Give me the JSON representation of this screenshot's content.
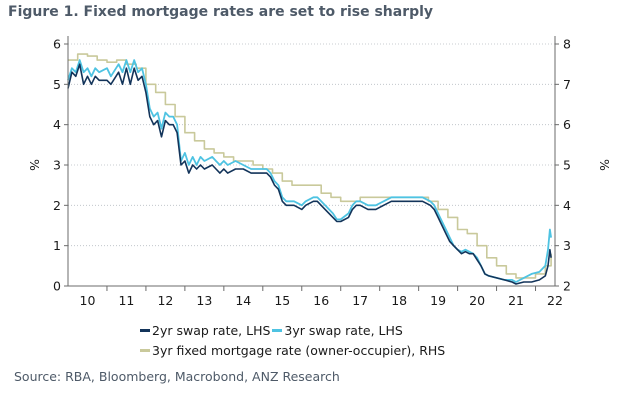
{
  "title": "Figure 1.  Fixed mortgage rates are set to rise sharply",
  "source": "Source: RBA, Bloomberg, Macrobond, ANZ Research",
  "colors": {
    "swap2": "#13345a",
    "swap3": "#4ec3e2",
    "mortgage": "#c9c99b",
    "text": "#4e5a68"
  },
  "legend": {
    "swap2": "2yr swap rate, LHS",
    "swap3": "3yr swap rate, LHS",
    "mortgage": "3yr fixed mortgage rate (owner-occupier), RHS"
  },
  "chart_data": {
    "type": "line",
    "ylabel_left": "%",
    "ylabel_right": "%",
    "x_ticks": [
      "10",
      "11",
      "12",
      "13",
      "14",
      "15",
      "16",
      "17",
      "18",
      "19",
      "20",
      "21",
      "22"
    ],
    "x_range": [
      2009.5,
      2022.0
    ],
    "ylim_left": [
      0,
      6
    ],
    "ylim_right": [
      2,
      8
    ],
    "y_ticks_left": [
      0,
      1,
      2,
      3,
      4,
      5,
      6
    ],
    "y_ticks_right": [
      2,
      3,
      4,
      5,
      6,
      7,
      8
    ],
    "series": [
      {
        "name": "2yr swap rate, LHS",
        "axis": "left",
        "points": [
          [
            2009.5,
            4.9
          ],
          [
            2009.6,
            5.3
          ],
          [
            2009.7,
            5.2
          ],
          [
            2009.8,
            5.5
          ],
          [
            2009.9,
            5.0
          ],
          [
            2010.0,
            5.2
          ],
          [
            2010.1,
            5.0
          ],
          [
            2010.2,
            5.2
          ],
          [
            2010.3,
            5.1
          ],
          [
            2010.5,
            5.1
          ],
          [
            2010.6,
            5.0
          ],
          [
            2010.8,
            5.3
          ],
          [
            2010.9,
            5.0
          ],
          [
            2011.0,
            5.4
          ],
          [
            2011.1,
            5.0
          ],
          [
            2011.2,
            5.4
          ],
          [
            2011.3,
            5.1
          ],
          [
            2011.4,
            5.2
          ],
          [
            2011.5,
            4.8
          ],
          [
            2011.6,
            4.2
          ],
          [
            2011.7,
            4.0
          ],
          [
            2011.8,
            4.1
          ],
          [
            2011.9,
            3.7
          ],
          [
            2012.0,
            4.1
          ],
          [
            2012.1,
            4.0
          ],
          [
            2012.2,
            4.0
          ],
          [
            2012.3,
            3.8
          ],
          [
            2012.4,
            3.0
          ],
          [
            2012.5,
            3.1
          ],
          [
            2012.6,
            2.8
          ],
          [
            2012.7,
            3.0
          ],
          [
            2012.8,
            2.9
          ],
          [
            2012.9,
            3.0
          ],
          [
            2013.0,
            2.9
          ],
          [
            2013.2,
            3.0
          ],
          [
            2013.3,
            2.9
          ],
          [
            2013.4,
            2.8
          ],
          [
            2013.5,
            2.9
          ],
          [
            2013.6,
            2.8
          ],
          [
            2013.8,
            2.9
          ],
          [
            2014.0,
            2.9
          ],
          [
            2014.2,
            2.8
          ],
          [
            2014.4,
            2.8
          ],
          [
            2014.6,
            2.8
          ],
          [
            2014.7,
            2.7
          ],
          [
            2014.8,
            2.5
          ],
          [
            2014.9,
            2.4
          ],
          [
            2015.0,
            2.1
          ],
          [
            2015.1,
            2.0
          ],
          [
            2015.3,
            2.0
          ],
          [
            2015.5,
            1.9
          ],
          [
            2015.6,
            2.0
          ],
          [
            2015.8,
            2.1
          ],
          [
            2015.9,
            2.1
          ],
          [
            2016.1,
            1.9
          ],
          [
            2016.3,
            1.7
          ],
          [
            2016.4,
            1.6
          ],
          [
            2016.5,
            1.6
          ],
          [
            2016.7,
            1.7
          ],
          [
            2016.8,
            1.9
          ],
          [
            2016.9,
            2.0
          ],
          [
            2017.0,
            2.0
          ],
          [
            2017.2,
            1.9
          ],
          [
            2017.4,
            1.9
          ],
          [
            2017.6,
            2.0
          ],
          [
            2017.8,
            2.1
          ],
          [
            2018.0,
            2.1
          ],
          [
            2018.2,
            2.1
          ],
          [
            2018.4,
            2.1
          ],
          [
            2018.6,
            2.1
          ],
          [
            2018.8,
            2.0
          ],
          [
            2018.9,
            1.9
          ],
          [
            2019.0,
            1.7
          ],
          [
            2019.1,
            1.5
          ],
          [
            2019.2,
            1.3
          ],
          [
            2019.3,
            1.1
          ],
          [
            2019.4,
            1.0
          ],
          [
            2019.5,
            0.9
          ],
          [
            2019.6,
            0.8
          ],
          [
            2019.7,
            0.85
          ],
          [
            2019.8,
            0.8
          ],
          [
            2019.9,
            0.8
          ],
          [
            2020.0,
            0.65
          ],
          [
            2020.1,
            0.5
          ],
          [
            2020.2,
            0.3
          ],
          [
            2020.3,
            0.25
          ],
          [
            2020.5,
            0.2
          ],
          [
            2020.7,
            0.15
          ],
          [
            2020.9,
            0.1
          ],
          [
            2021.0,
            0.05
          ],
          [
            2021.2,
            0.1
          ],
          [
            2021.4,
            0.1
          ],
          [
            2021.6,
            0.15
          ],
          [
            2021.75,
            0.25
          ],
          [
            2021.82,
            0.5
          ],
          [
            2021.87,
            0.9
          ],
          [
            2021.9,
            0.7
          ]
        ]
      },
      {
        "name": "3yr swap rate, LHS",
        "axis": "left",
        "points": [
          [
            2009.5,
            5.1
          ],
          [
            2009.6,
            5.4
          ],
          [
            2009.7,
            5.3
          ],
          [
            2009.8,
            5.6
          ],
          [
            2009.9,
            5.3
          ],
          [
            2010.0,
            5.4
          ],
          [
            2010.1,
            5.2
          ],
          [
            2010.2,
            5.4
          ],
          [
            2010.3,
            5.3
          ],
          [
            2010.5,
            5.4
          ],
          [
            2010.6,
            5.2
          ],
          [
            2010.8,
            5.5
          ],
          [
            2010.9,
            5.3
          ],
          [
            2011.0,
            5.6
          ],
          [
            2011.1,
            5.3
          ],
          [
            2011.2,
            5.6
          ],
          [
            2011.3,
            5.3
          ],
          [
            2011.4,
            5.4
          ],
          [
            2011.5,
            5.0
          ],
          [
            2011.6,
            4.4
          ],
          [
            2011.7,
            4.2
          ],
          [
            2011.8,
            4.3
          ],
          [
            2011.9,
            3.9
          ],
          [
            2012.0,
            4.3
          ],
          [
            2012.1,
            4.2
          ],
          [
            2012.2,
            4.2
          ],
          [
            2012.3,
            4.0
          ],
          [
            2012.4,
            3.1
          ],
          [
            2012.5,
            3.3
          ],
          [
            2012.6,
            3.0
          ],
          [
            2012.7,
            3.2
          ],
          [
            2012.8,
            3.0
          ],
          [
            2012.9,
            3.2
          ],
          [
            2013.0,
            3.1
          ],
          [
            2013.2,
            3.2
          ],
          [
            2013.3,
            3.1
          ],
          [
            2013.4,
            3.0
          ],
          [
            2013.5,
            3.1
          ],
          [
            2013.6,
            3.0
          ],
          [
            2013.8,
            3.1
          ],
          [
            2014.0,
            3.0
          ],
          [
            2014.2,
            2.9
          ],
          [
            2014.4,
            2.9
          ],
          [
            2014.6,
            2.9
          ],
          [
            2014.7,
            2.8
          ],
          [
            2014.8,
            2.6
          ],
          [
            2014.9,
            2.5
          ],
          [
            2015.0,
            2.2
          ],
          [
            2015.1,
            2.1
          ],
          [
            2015.3,
            2.1
          ],
          [
            2015.5,
            2.0
          ],
          [
            2015.6,
            2.1
          ],
          [
            2015.8,
            2.2
          ],
          [
            2015.9,
            2.2
          ],
          [
            2016.1,
            2.0
          ],
          [
            2016.3,
            1.8
          ],
          [
            2016.4,
            1.65
          ],
          [
            2016.5,
            1.65
          ],
          [
            2016.7,
            1.8
          ],
          [
            2016.8,
            2.0
          ],
          [
            2016.9,
            2.1
          ],
          [
            2017.0,
            2.1
          ],
          [
            2017.2,
            2.0
          ],
          [
            2017.4,
            2.0
          ],
          [
            2017.6,
            2.1
          ],
          [
            2017.8,
            2.2
          ],
          [
            2018.0,
            2.2
          ],
          [
            2018.2,
            2.2
          ],
          [
            2018.4,
            2.2
          ],
          [
            2018.6,
            2.2
          ],
          [
            2018.8,
            2.1
          ],
          [
            2018.9,
            2.0
          ],
          [
            2019.0,
            1.8
          ],
          [
            2019.1,
            1.6
          ],
          [
            2019.2,
            1.4
          ],
          [
            2019.3,
            1.2
          ],
          [
            2019.4,
            1.0
          ],
          [
            2019.5,
            0.9
          ],
          [
            2019.6,
            0.85
          ],
          [
            2019.7,
            0.9
          ],
          [
            2019.8,
            0.85
          ],
          [
            2019.9,
            0.8
          ],
          [
            2020.0,
            0.7
          ],
          [
            2020.1,
            0.5
          ],
          [
            2020.2,
            0.3
          ],
          [
            2020.3,
            0.25
          ],
          [
            2020.5,
            0.2
          ],
          [
            2020.7,
            0.15
          ],
          [
            2020.9,
            0.15
          ],
          [
            2021.0,
            0.1
          ],
          [
            2021.2,
            0.2
          ],
          [
            2021.4,
            0.3
          ],
          [
            2021.6,
            0.35
          ],
          [
            2021.75,
            0.5
          ],
          [
            2021.82,
            0.9
          ],
          [
            2021.87,
            1.4
          ],
          [
            2021.9,
            1.2
          ]
        ]
      },
      {
        "name": "3yr fixed mortgage rate (owner-occupier), RHS",
        "axis": "right",
        "points": [
          [
            2009.5,
            7.6
          ],
          [
            2009.75,
            7.75
          ],
          [
            2010.0,
            7.7
          ],
          [
            2010.25,
            7.6
          ],
          [
            2010.5,
            7.55
          ],
          [
            2010.75,
            7.6
          ],
          [
            2011.0,
            7.5
          ],
          [
            2011.25,
            7.4
          ],
          [
            2011.5,
            7.0
          ],
          [
            2011.75,
            6.8
          ],
          [
            2012.0,
            6.5
          ],
          [
            2012.25,
            6.2
          ],
          [
            2012.5,
            5.8
          ],
          [
            2012.75,
            5.6
          ],
          [
            2013.0,
            5.4
          ],
          [
            2013.25,
            5.3
          ],
          [
            2013.5,
            5.2
          ],
          [
            2013.75,
            5.1
          ],
          [
            2014.0,
            5.1
          ],
          [
            2014.25,
            5.0
          ],
          [
            2014.5,
            4.9
          ],
          [
            2014.75,
            4.8
          ],
          [
            2015.0,
            4.6
          ],
          [
            2015.25,
            4.5
          ],
          [
            2015.5,
            4.5
          ],
          [
            2015.75,
            4.5
          ],
          [
            2016.0,
            4.3
          ],
          [
            2016.25,
            4.2
          ],
          [
            2016.5,
            4.1
          ],
          [
            2016.75,
            4.1
          ],
          [
            2017.0,
            4.2
          ],
          [
            2017.25,
            4.2
          ],
          [
            2017.5,
            4.2
          ],
          [
            2017.75,
            4.2
          ],
          [
            2018.0,
            4.2
          ],
          [
            2018.25,
            4.2
          ],
          [
            2018.5,
            4.2
          ],
          [
            2018.75,
            4.1
          ],
          [
            2019.0,
            3.9
          ],
          [
            2019.25,
            3.7
          ],
          [
            2019.5,
            3.4
          ],
          [
            2019.75,
            3.3
          ],
          [
            2020.0,
            3.0
          ],
          [
            2020.25,
            2.7
          ],
          [
            2020.5,
            2.5
          ],
          [
            2020.75,
            2.3
          ],
          [
            2021.0,
            2.2
          ],
          [
            2021.25,
            2.2
          ],
          [
            2021.5,
            2.3
          ],
          [
            2021.75,
            2.5
          ],
          [
            2021.9,
            2.8
          ]
        ]
      }
    ]
  }
}
